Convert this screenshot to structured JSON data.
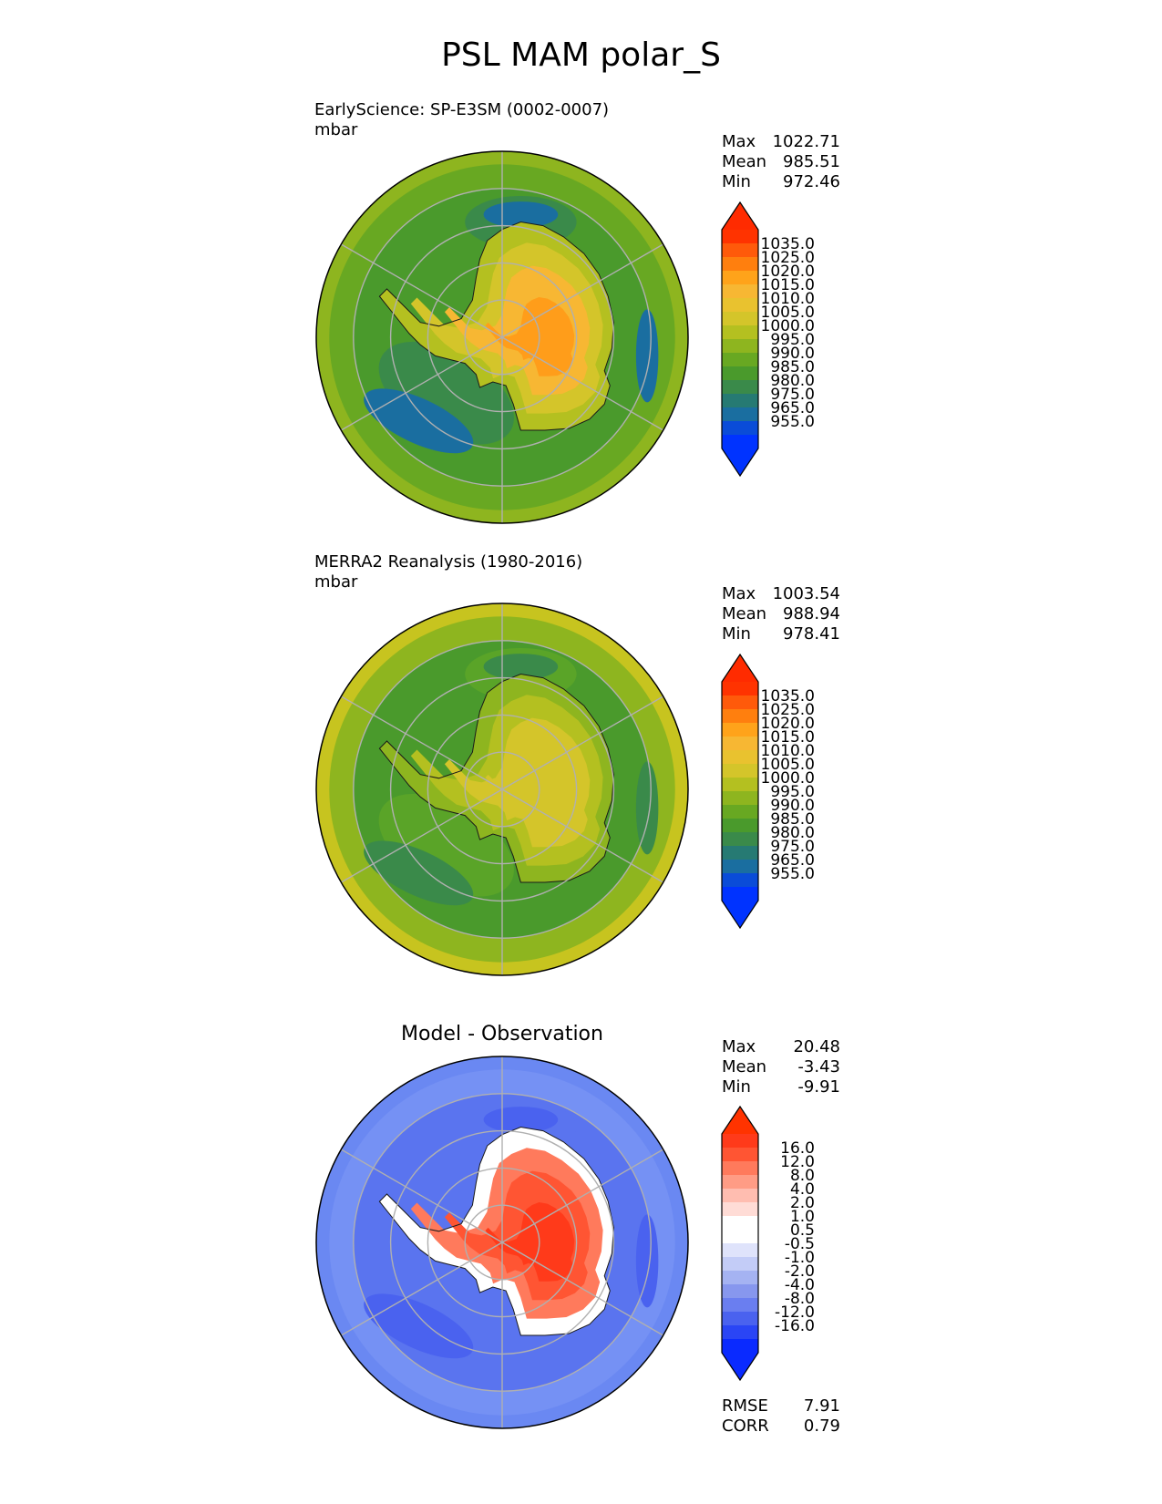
{
  "figure": {
    "title": "PSL MAM polar_S"
  },
  "panels": [
    {
      "id": "test",
      "title": "EarlyScience: SP-E3SM (0002-0007)",
      "units": "mbar",
      "stats": [
        {
          "label": "Max",
          "value": "1022.71"
        },
        {
          "label": "Mean",
          "value": "985.51"
        },
        {
          "label": "Min",
          "value": "972.46"
        }
      ],
      "colorbar": {
        "tick_labels": [
          "1035.0",
          "1025.0",
          "1020.0",
          "1015.0",
          "1010.0",
          "1005.0",
          "1000.0",
          "995.0",
          "990.0",
          "985.0",
          "980.0",
          "975.0",
          "965.0",
          "955.0"
        ],
        "colors_top_to_bottom": [
          "#ff3300",
          "#ff5a0a",
          "#ff7f0e",
          "#ffa31a",
          "#f7b733",
          "#e9c22f",
          "#d4c52a",
          "#b4c020",
          "#8eb51f",
          "#68a822",
          "#4a9a2c",
          "#3a8a4a",
          "#267a73",
          "#1a6ea0",
          "#0a4cd8",
          "#0033ff"
        ],
        "max_arrow_color": "#ff2b00",
        "min_arrow_color": "#0033ff"
      }
    },
    {
      "id": "reference",
      "title": "MERRA2 Reanalysis (1980-2016)",
      "units": "mbar",
      "stats": [
        {
          "label": "Max",
          "value": "1003.54"
        },
        {
          "label": "Mean",
          "value": "988.94"
        },
        {
          "label": "Min",
          "value": "978.41"
        }
      ],
      "colorbar": {
        "tick_labels": [
          "1035.0",
          "1025.0",
          "1020.0",
          "1015.0",
          "1010.0",
          "1005.0",
          "1000.0",
          "995.0",
          "990.0",
          "985.0",
          "980.0",
          "975.0",
          "965.0",
          "955.0"
        ],
        "colors_top_to_bottom": [
          "#ff3300",
          "#ff5a0a",
          "#ff7f0e",
          "#ffa31a",
          "#f7b733",
          "#e9c22f",
          "#d4c52a",
          "#b4c020",
          "#8eb51f",
          "#68a822",
          "#4a9a2c",
          "#3a8a4a",
          "#267a73",
          "#1a6ea0",
          "#0a4cd8",
          "#0033ff"
        ],
        "max_arrow_color": "#ff2b00",
        "min_arrow_color": "#0033ff"
      }
    },
    {
      "id": "difference",
      "title": "Model - Observation",
      "units": "",
      "stats": [
        {
          "label": "Max",
          "value": "20.48"
        },
        {
          "label": "Mean",
          "value": "-3.43"
        },
        {
          "label": "Min",
          "value": "-9.91"
        }
      ],
      "metrics": [
        {
          "label": "RMSE",
          "value": "7.91"
        },
        {
          "label": "CORR",
          "value": "0.79"
        }
      ],
      "colorbar": {
        "tick_labels": [
          "16.0",
          "12.0",
          "8.0",
          "4.0",
          "2.0",
          "1.0",
          "0.5",
          "-0.5",
          "-1.0",
          "-2.0",
          "-4.0",
          "-8.0",
          "-12.0",
          "-16.0"
        ],
        "colors_top_to_bottom": [
          "#ff3a1a",
          "#ff5533",
          "#ff7a5c",
          "#ff9c85",
          "#ffbdb0",
          "#ffdcd6",
          "#ffffff",
          "#ffffff",
          "#dfe3fb",
          "#c3ccf7",
          "#a5b3f2",
          "#8797ee",
          "#6a7ef0",
          "#4a62ef",
          "#2a45f5",
          "#0a2aff"
        ],
        "max_arrow_color": "#ff3300",
        "min_arrow_color": "#0a2aff"
      }
    }
  ],
  "map_style": {
    "test": {
      "ocean_outer": "#8eb51f",
      "ocean_mid": "#68a822",
      "ocean_band": "#4a9a2c",
      "low_pressure": "#1a6ea0",
      "low_pressure_2": "#3a8a4a",
      "ice_1": "#b4c020",
      "ice_2": "#d4c52a",
      "ice_3": "#f7b733",
      "ice_4": "#ff9d1a"
    },
    "reference": {
      "ocean_outer": "#c7c41f",
      "ocean_mid": "#8eb51f",
      "ocean_band": "#4a9a2c",
      "low_pressure": "#3a8a4a",
      "low_pressure_2": "#5aa428",
      "ice_1": "#8eb51f",
      "ice_2": "#b4c020",
      "ice_3": "#d4c52a",
      "ice_4": "#d4c52a"
    },
    "difference": {
      "ocean_outer": "#6a88f2",
      "ocean_mid": "#7591f4",
      "ocean_band": "#5a74ef",
      "low_pressure": "#4a62ef",
      "low_pressure_2": "#5a74ef",
      "ice_1": "#ffffff",
      "ice_2": "#ff7a5c",
      "ice_3": "#ff5533",
      "ice_4": "#ff3a1a"
    }
  }
}
